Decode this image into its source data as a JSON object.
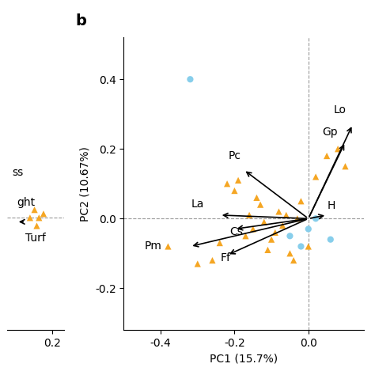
{
  "chart_data": [
    {
      "type": "scatter",
      "xlim": [
        0.0,
        0.25
      ],
      "xticks": [
        0.2
      ],
      "ylim": [
        -0.28,
        0.45
      ],
      "tick_labels": "x",
      "series": [
        {
          "marker": "triangle",
          "color": "#F5A623",
          "x": [
            0.1,
            0.12,
            0.14,
            0.13,
            0.16
          ],
          "values": [
            0.0,
            0.02,
            0.0,
            -0.02,
            0.01
          ]
        }
      ],
      "hlines": [
        0
      ],
      "arrows": [
        {
          "x": 0.04,
          "y": -0.01,
          "x_start": 0.08,
          "y_start": -0.01
        }
      ],
      "annotations": [
        {
          "text": "ss",
          "x": 0.02,
          "y": 0.1
        },
        {
          "text": "ght",
          "x": 0.04,
          "y": 0.025
        },
        {
          "text": "Turf",
          "x": 0.08,
          "y": -0.065
        }
      ]
    },
    {
      "type": "scatter",
      "panel_label": "b",
      "xlabel": "PC1 (15.7%)",
      "ylabel": "PC2 (10.67%)",
      "xlim": [
        -0.5,
        0.15
      ],
      "ylim": [
        -0.32,
        0.52
      ],
      "xticks": [
        -0.4,
        -0.2,
        0.0
      ],
      "yticks": [
        -0.2,
        0.0,
        0.2,
        0.4
      ],
      "series": [
        {
          "marker": "triangle",
          "color": "#F5A623",
          "x": [
            -0.38,
            -0.3,
            -0.26,
            -0.24,
            -0.22,
            -0.2,
            -0.19,
            -0.17,
            -0.16,
            -0.15,
            -0.14,
            -0.13,
            -0.12,
            -0.11,
            -0.1,
            -0.09,
            -0.08,
            -0.07,
            -0.06,
            -0.05,
            -0.04,
            -0.03,
            -0.02,
            0.0,
            0.02,
            0.05,
            0.08,
            0.1
          ],
          "values": [
            -0.08,
            -0.13,
            -0.12,
            -0.07,
            0.1,
            0.08,
            0.11,
            -0.05,
            0.01,
            -0.03,
            0.06,
            0.04,
            -0.01,
            -0.09,
            -0.06,
            -0.04,
            0.02,
            -0.02,
            0.01,
            -0.1,
            -0.12,
            0.0,
            0.05,
            -0.08,
            0.12,
            0.18,
            0.2,
            0.15
          ]
        },
        {
          "marker": "circle",
          "color": "#87CEEB",
          "x": [
            -0.32,
            -0.05,
            0.0,
            0.02,
            -0.02,
            0.06
          ],
          "values": [
            0.4,
            -0.05,
            -0.03,
            0.0,
            -0.08,
            -0.06
          ]
        }
      ],
      "hlines": [
        0
      ],
      "vlines": [
        0
      ],
      "arrows": [
        {
          "label": "Pc",
          "x": -0.175,
          "y": 0.14,
          "x_start": 0,
          "y_start": 0,
          "label_x": -0.2,
          "label_y": 0.165
        },
        {
          "label": "La",
          "x": -0.24,
          "y": 0.01,
          "x_start": 0,
          "y_start": 0,
          "label_x": -0.3,
          "label_y": 0.025
        },
        {
          "label": "Pm",
          "x": -0.32,
          "y": -0.08,
          "x_start": 0,
          "y_start": 0,
          "label_x": -0.42,
          "label_y": -0.095
        },
        {
          "label": "Ff",
          "x": -0.22,
          "y": -0.105,
          "x_start": 0,
          "y_start": 0,
          "label_x": -0.225,
          "label_y": -0.128
        },
        {
          "label": "Cs",
          "x": -0.2,
          "y": -0.03,
          "x_start": 0,
          "y_start": 0,
          "label_x": -0.195,
          "label_y": -0.055
        },
        {
          "label": "Gp",
          "x": 0.1,
          "y": 0.22,
          "x_start": 0,
          "y_start": 0,
          "label_x": 0.058,
          "label_y": 0.232
        },
        {
          "label": "Lo",
          "x": 0.12,
          "y": 0.27,
          "x_start": 0,
          "y_start": 0,
          "label_x": 0.085,
          "label_y": 0.295
        },
        {
          "label": "H",
          "x": 0.05,
          "y": 0.01,
          "x_start": 0,
          "y_start": 0,
          "label_x": 0.062,
          "label_y": 0.022
        }
      ]
    }
  ]
}
